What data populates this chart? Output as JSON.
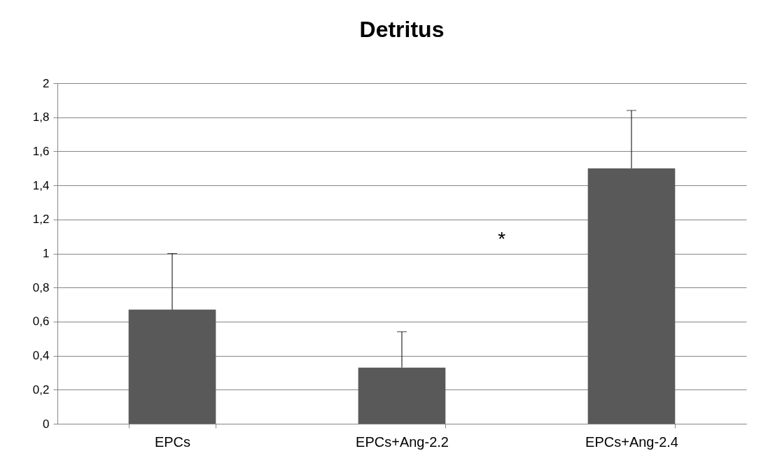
{
  "chart_data": {
    "type": "bar",
    "title": "Detritus",
    "categories": [
      "EPCs",
      "EPCs+Ang-2.2",
      "EPCs+Ang-2.4"
    ],
    "values": [
      0.67,
      0.33,
      1.5
    ],
    "errors": [
      [
        0.67,
        1.0
      ],
      [
        0.33,
        0.54
      ],
      [
        1.5,
        1.84
      ]
    ],
    "color": "#595959",
    "ylim": [
      0,
      2
    ],
    "yticks": [
      0,
      {
        "value": 0.2,
        "label": "0,2"
      },
      {
        "value": 0.4,
        "label": "0,4"
      },
      {
        "value": 0.6,
        "label": "0,6"
      },
      {
        "value": 0.8,
        "label": "0,8"
      },
      1,
      {
        "value": 1.2,
        "label": "1,2"
      },
      {
        "value": 1.4,
        "label": "1,4"
      },
      {
        "value": 1.6,
        "label": "1,6"
      },
      {
        "value": 1.8,
        "label": "1,8"
      },
      2
    ],
    "grid": "y",
    "annotations": [
      "*"
    ]
  }
}
